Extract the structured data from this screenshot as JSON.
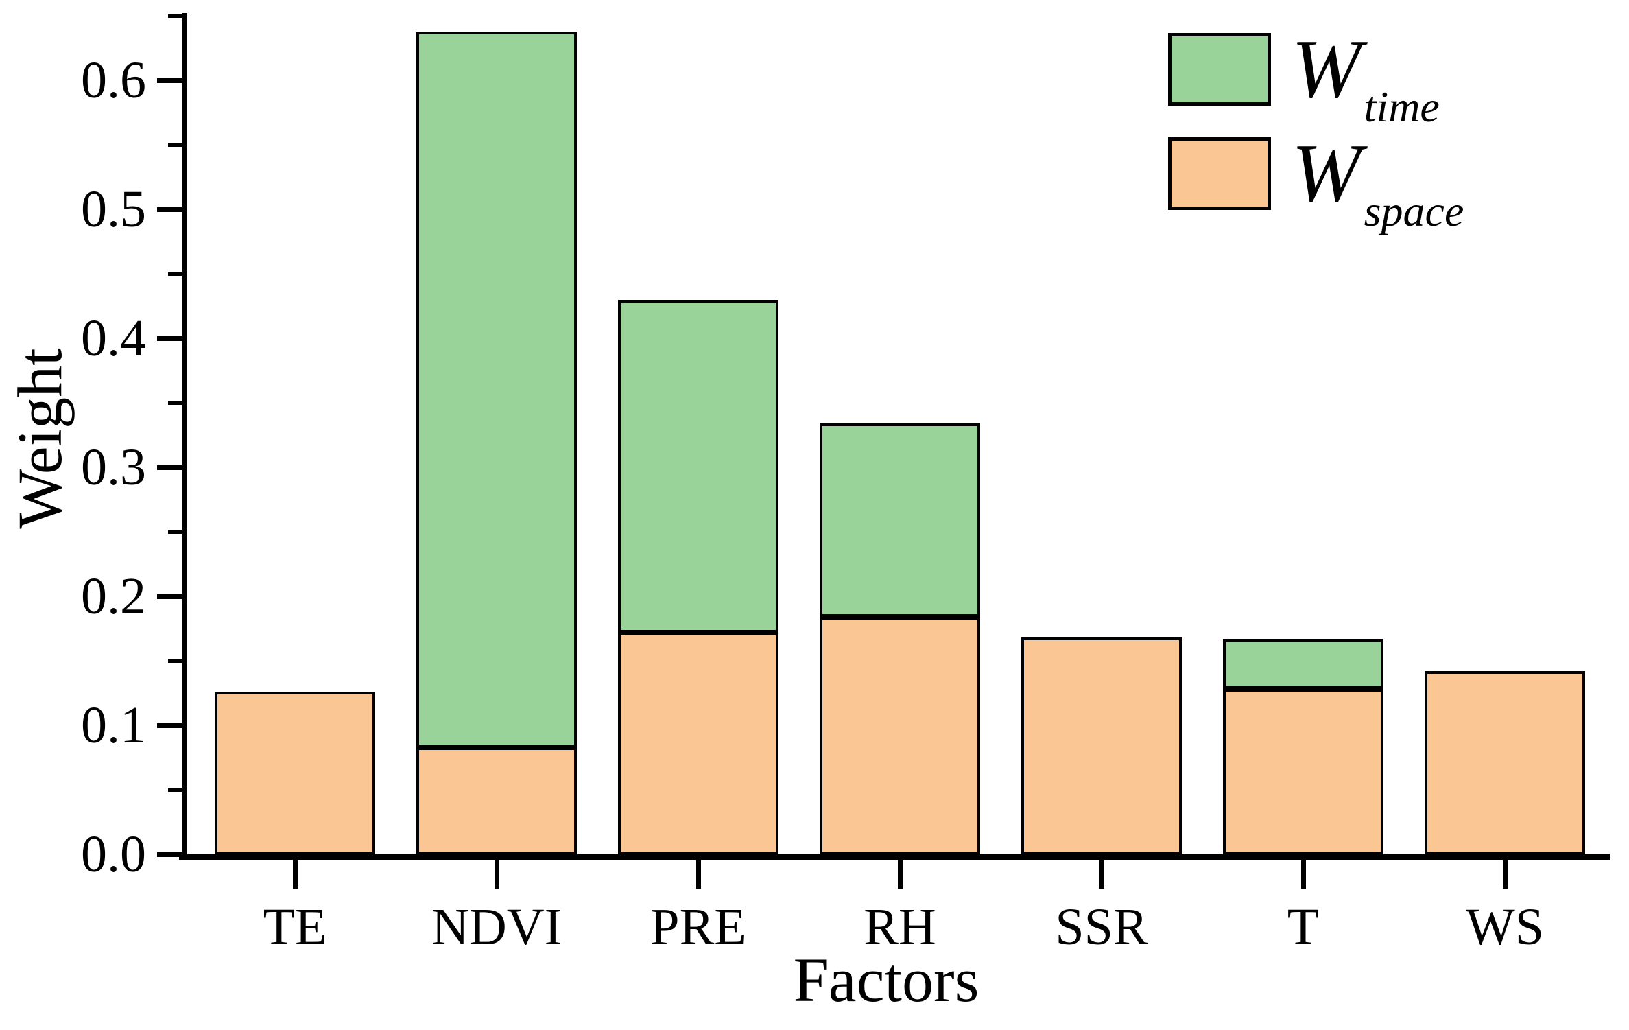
{
  "chart_data": {
    "type": "bar",
    "stacked": true,
    "categories": [
      "TE",
      "NDVI",
      "PRE",
      "RH",
      "SSR",
      "T",
      "WS"
    ],
    "series": [
      {
        "name": "W_time",
        "symbol": "W",
        "subscript": "time",
        "color": "#9AD399",
        "values": [
          0,
          0.555,
          0.258,
          0.15,
          0,
          0.039,
          0
        ]
      },
      {
        "name": "W_space",
        "symbol": "W",
        "subscript": "space",
        "color": "#FAC794",
        "values": [
          0.126,
          0.083,
          0.172,
          0.184,
          0.168,
          0.128,
          0.142
        ]
      }
    ],
    "stack_order_bottom_to_top": [
      "W_space",
      "W_time"
    ],
    "totals": [
      0.126,
      0.638,
      0.43,
      0.334,
      0.168,
      0.167,
      0.142
    ],
    "xlabel": "Factors",
    "ylabel": "Weight",
    "ylim": [
      0,
      0.65
    ],
    "ytick_values": [
      0,
      0.1,
      0.2,
      0.3,
      0.4,
      0.5,
      0.6
    ],
    "ytick_labels": [
      "0.0",
      "0.1",
      "0.2",
      "0.3",
      "0.4",
      "0.5",
      "0.6"
    ],
    "ytick_minor_values": [
      0.05,
      0.15,
      0.25,
      0.35,
      0.45,
      0.55,
      0.65
    ],
    "grid": false,
    "legend": {
      "position": "top-right"
    },
    "colors": {
      "bar_edge": "#000000",
      "axis": "#000000",
      "text": "#000000",
      "background": "#FFFFFF"
    }
  }
}
